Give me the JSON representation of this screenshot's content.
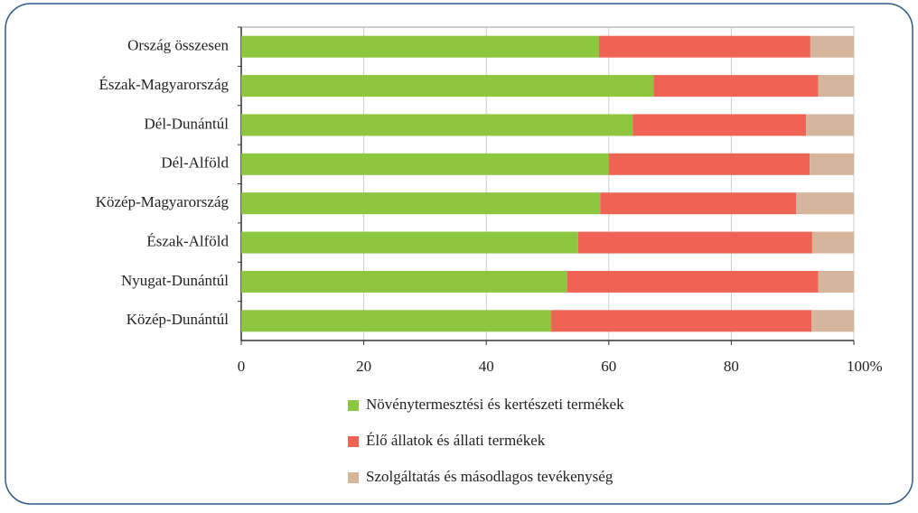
{
  "chart_data": {
    "type": "stacked-hbar",
    "categories": [
      "Ország összesen",
      "Észak-Magyarország",
      "Dél-Dunántúl",
      "Dél-Alföld",
      "Közép-Magyarország",
      "Észak-Alföld",
      "Nyugat-Dunántúl",
      "Közép-Dunántúl"
    ],
    "series": [
      {
        "name": "Növénytermesztési és kertészeti termékek",
        "color": "#8dc63f",
        "values": [
          58.4,
          67.3,
          63.9,
          60.0,
          58.6,
          55.0,
          53.2,
          50.6
        ]
      },
      {
        "name": "Élő állatok és állati termékek",
        "color": "#ef6354",
        "values": [
          34.5,
          26.9,
          28.3,
          32.8,
          32.0,
          38.2,
          41.0,
          42.5
        ]
      },
      {
        "name": "Szolgáltatás és másodlagos tevékenység",
        "color": "#d5b59c",
        "values": [
          7.1,
          5.8,
          7.8,
          7.2,
          9.4,
          6.8,
          5.8,
          6.9
        ]
      }
    ],
    "xlim": [
      0,
      100
    ],
    "xticks": [
      0,
      20,
      40,
      60,
      80,
      {
        "value": 100,
        "label": "100%"
      }
    ],
    "grid": true
  }
}
